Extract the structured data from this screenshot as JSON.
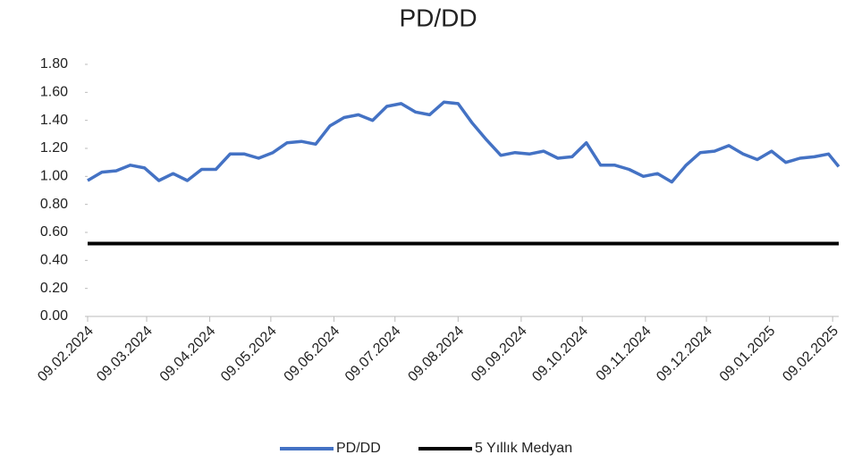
{
  "chart_data": {
    "type": "line",
    "title": "PD/DD",
    "x": [
      "09.02.2024",
      "16.02.2024",
      "23.02.2024",
      "01.03.2024",
      "08.03.2024",
      "15.03.2024",
      "22.03.2024",
      "29.03.2024",
      "05.04.2024",
      "12.04.2024",
      "19.04.2024",
      "26.04.2024",
      "03.05.2024",
      "10.05.2024",
      "17.05.2024",
      "24.05.2024",
      "31.05.2024",
      "07.06.2024",
      "14.06.2024",
      "21.06.2024",
      "28.06.2024",
      "05.07.2024",
      "12.07.2024",
      "19.07.2024",
      "26.07.2024",
      "02.08.2024",
      "09.08.2024",
      "16.08.2024",
      "23.08.2024",
      "30.08.2024",
      "06.09.2024",
      "13.09.2024",
      "20.09.2024",
      "27.09.2024",
      "04.10.2024",
      "11.10.2024",
      "18.10.2024",
      "25.10.2024",
      "01.11.2024",
      "08.11.2024",
      "15.11.2024",
      "22.11.2024",
      "29.11.2024",
      "06.12.2024",
      "13.12.2024",
      "20.12.2024",
      "27.12.2024",
      "03.01.2025",
      "10.01.2025",
      "17.01.2025",
      "24.01.2025",
      "31.01.2025",
      "07.02.2025",
      "12.02.2025"
    ],
    "series": [
      {
        "name": "PD/DD",
        "color": "#4472c4",
        "values": [
          0.97,
          1.03,
          1.04,
          1.08,
          1.06,
          0.97,
          1.02,
          0.97,
          1.05,
          1.05,
          1.16,
          1.16,
          1.13,
          1.17,
          1.24,
          1.25,
          1.23,
          1.36,
          1.42,
          1.44,
          1.4,
          1.5,
          1.52,
          1.46,
          1.44,
          1.53,
          1.52,
          1.38,
          1.26,
          1.15,
          1.17,
          1.16,
          1.18,
          1.13,
          1.14,
          1.24,
          1.08,
          1.08,
          1.05,
          1.0,
          1.02,
          0.96,
          1.08,
          1.17,
          1.18,
          1.22,
          1.16,
          1.12,
          1.18,
          1.1,
          1.13,
          1.14,
          1.16,
          1.07
        ]
      },
      {
        "name": "5 Yıllık Medyan",
        "color": "#000000",
        "values": [
          0.52,
          0.52,
          0.52,
          0.52,
          0.52,
          0.52,
          0.52,
          0.52,
          0.52,
          0.52,
          0.52,
          0.52,
          0.52,
          0.52,
          0.52,
          0.52,
          0.52,
          0.52,
          0.52,
          0.52,
          0.52,
          0.52,
          0.52,
          0.52,
          0.52,
          0.52,
          0.52,
          0.52,
          0.52,
          0.52,
          0.52,
          0.52,
          0.52,
          0.52,
          0.52,
          0.52,
          0.52,
          0.52,
          0.52,
          0.52,
          0.52,
          0.52,
          0.52,
          0.52,
          0.52,
          0.52,
          0.52,
          0.52,
          0.52,
          0.52,
          0.52,
          0.52,
          0.52,
          0.52
        ]
      }
    ],
    "xlim": [
      "09.02.2024",
      "12.02.2025"
    ],
    "xticks": [
      "09.02.2024",
      "09.03.2024",
      "09.04.2024",
      "09.05.2024",
      "09.06.2024",
      "09.07.2024",
      "09.08.2024",
      "09.09.2024",
      "09.10.2024",
      "09.11.2024",
      "09.12.2024",
      "09.01.2025",
      "09.02.2025"
    ],
    "ylim": [
      0,
      1.8
    ],
    "yticks": [
      {
        "value": 0,
        "label": "0.00"
      },
      {
        "value": 0.2,
        "label": "0.20"
      },
      {
        "value": 0.4,
        "label": "0.40"
      },
      {
        "value": 0.6,
        "label": "0.60"
      },
      {
        "value": 0.8,
        "label": "0.80"
      },
      {
        "value": 1.0,
        "label": "1.00"
      },
      {
        "value": 1.2,
        "label": "1.20"
      },
      {
        "value": 1.4,
        "label": "1.40"
      },
      {
        "value": 1.6,
        "label": "1.60"
      },
      {
        "value": 1.8,
        "label": "1.80"
      }
    ],
    "legend": "bottom"
  }
}
